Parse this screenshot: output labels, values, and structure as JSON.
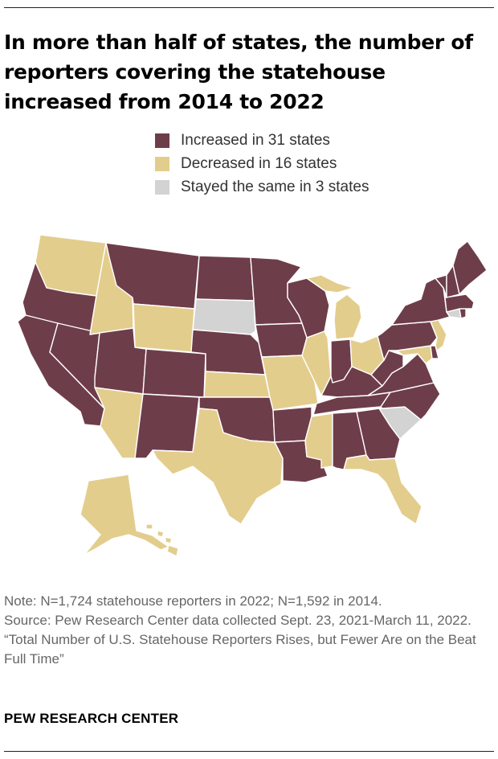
{
  "title": "In more than half of states, the number of reporters covering the statehouse increased from 2014 to 2022",
  "colors": {
    "increased": "#6e3d4a",
    "decreased": "#e3cd8d",
    "same": "#d3d3d3"
  },
  "legend": [
    {
      "label": "Increased in 31 states",
      "category": "increased"
    },
    {
      "label": "Decreased in 16 states",
      "category": "decreased"
    },
    {
      "label": "Stayed the same in 3 states",
      "category": "same"
    }
  ],
  "states": [
    {
      "abbr": "WA",
      "category": "decreased"
    },
    {
      "abbr": "OR",
      "category": "increased"
    },
    {
      "abbr": "CA",
      "category": "increased"
    },
    {
      "abbr": "NV",
      "category": "increased"
    },
    {
      "abbr": "ID",
      "category": "decreased"
    },
    {
      "abbr": "MT",
      "category": "increased"
    },
    {
      "abbr": "WY",
      "category": "decreased"
    },
    {
      "abbr": "UT",
      "category": "increased"
    },
    {
      "abbr": "AZ",
      "category": "decreased"
    },
    {
      "abbr": "CO",
      "category": "increased"
    },
    {
      "abbr": "NM",
      "category": "increased"
    },
    {
      "abbr": "ND",
      "category": "increased"
    },
    {
      "abbr": "SD",
      "category": "same"
    },
    {
      "abbr": "NE",
      "category": "increased"
    },
    {
      "abbr": "KS",
      "category": "decreased"
    },
    {
      "abbr": "OK",
      "category": "increased"
    },
    {
      "abbr": "TX",
      "category": "decreased"
    },
    {
      "abbr": "MN",
      "category": "increased"
    },
    {
      "abbr": "IA",
      "category": "increased"
    },
    {
      "abbr": "MO",
      "category": "decreased"
    },
    {
      "abbr": "AR",
      "category": "increased"
    },
    {
      "abbr": "LA",
      "category": "increased"
    },
    {
      "abbr": "WI",
      "category": "increased"
    },
    {
      "abbr": "IL",
      "category": "decreased"
    },
    {
      "abbr": "MI",
      "category": "decreased"
    },
    {
      "abbr": "IN",
      "category": "increased"
    },
    {
      "abbr": "OH",
      "category": "decreased"
    },
    {
      "abbr": "KY",
      "category": "increased"
    },
    {
      "abbr": "TN",
      "category": "increased"
    },
    {
      "abbr": "MS",
      "category": "decreased"
    },
    {
      "abbr": "AL",
      "category": "increased"
    },
    {
      "abbr": "GA",
      "category": "increased"
    },
    {
      "abbr": "FL",
      "category": "decreased"
    },
    {
      "abbr": "SC",
      "category": "same"
    },
    {
      "abbr": "NC",
      "category": "increased"
    },
    {
      "abbr": "VA",
      "category": "increased"
    },
    {
      "abbr": "WV",
      "category": "increased"
    },
    {
      "abbr": "MD",
      "category": "decreased"
    },
    {
      "abbr": "DE",
      "category": "increased"
    },
    {
      "abbr": "PA",
      "category": "increased"
    },
    {
      "abbr": "NJ",
      "category": "decreased"
    },
    {
      "abbr": "NY",
      "category": "increased"
    },
    {
      "abbr": "CT",
      "category": "same"
    },
    {
      "abbr": "RI",
      "category": "increased"
    },
    {
      "abbr": "MA",
      "category": "increased"
    },
    {
      "abbr": "VT",
      "category": "increased"
    },
    {
      "abbr": "NH",
      "category": "increased"
    },
    {
      "abbr": "ME",
      "category": "increased"
    },
    {
      "abbr": "AK",
      "category": "decreased"
    },
    {
      "abbr": "HI",
      "category": "decreased"
    }
  ],
  "notes": {
    "note": "Note: N=1,724 statehouse reporters in 2022; N=1,592 in 2014.",
    "source": "Source: Pew Research Center data collected Sept. 23, 2021-March 11, 2022.",
    "report": "“Total Number of U.S. Statehouse Reporters Rises, but Fewer Are on the Beat Full Time”"
  },
  "brand": "PEW RESEARCH CENTER"
}
